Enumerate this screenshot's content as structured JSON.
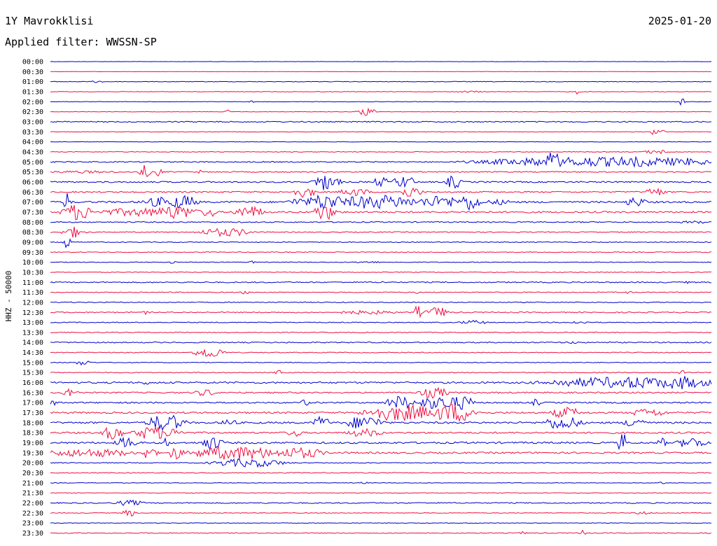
{
  "header": {
    "station": "1Y Mavrokklisi",
    "date": "2025-01-20",
    "filter": "Applied filter: WWSSN-SP"
  },
  "chart_data": {
    "type": "line",
    "ylabel": "HHZ - 50000",
    "colors": [
      "#0000cc",
      "#ee1144"
    ],
    "rows": [
      "00:00",
      "00:30",
      "01:00",
      "01:30",
      "02:00",
      "02:30",
      "03:00",
      "03:30",
      "04:00",
      "04:30",
      "05:00",
      "05:30",
      "06:00",
      "06:30",
      "07:00",
      "07:30",
      "08:00",
      "08:30",
      "09:00",
      "09:30",
      "10:00",
      "10:30",
      "11:00",
      "11:30",
      "12:00",
      "12:30",
      "13:00",
      "13:30",
      "14:00",
      "14:30",
      "15:00",
      "15:30",
      "16:00",
      "16:30",
      "17:00",
      "17:30",
      "18:00",
      "18:30",
      "19:00",
      "19:30",
      "20:00",
      "20:30",
      "21:00",
      "21:30",
      "22:00",
      "22:30",
      "23:00",
      "23:30"
    ],
    "noise": [
      0.2,
      0.2,
      0.4,
      0.4,
      0.3,
      0.3,
      0.8,
      0.4,
      0.3,
      0.5,
      0.8,
      0.8,
      1.0,
      1.0,
      1.2,
      1.2,
      0.8,
      0.7,
      0.6,
      0.6,
      0.5,
      0.5,
      0.8,
      0.6,
      0.6,
      0.8,
      0.6,
      0.6,
      0.8,
      0.6,
      0.5,
      0.6,
      1.2,
      1.0,
      1.0,
      1.2,
      1.3,
      1.2,
      1.3,
      1.2,
      0.6,
      0.6,
      0.4,
      0.4,
      0.8,
      0.5,
      0.4,
      0.6
    ],
    "events": [
      [],
      [],
      [
        [
          0.06,
          0.08,
          1.5
        ]
      ],
      [
        [
          0.61,
          0.66,
          1.2
        ],
        [
          0.795,
          0.8,
          4
        ]
      ],
      [
        [
          0.3,
          0.31,
          1.5
        ],
        [
          0.955,
          0.957,
          10
        ]
      ],
      [
        [
          0.465,
          0.49,
          6
        ],
        [
          0.265,
          0.27,
          4
        ]
      ],
      [],
      [
        [
          0.91,
          0.92,
          6
        ],
        [
          0.925,
          0.93,
          3
        ]
      ],
      [],
      [
        [
          0.9,
          0.94,
          3
        ]
      ],
      [
        [
          0.67,
          1.0,
          7
        ],
        [
          0.725,
          0.73,
          12
        ],
        [
          0.75,
          0.77,
          16
        ],
        [
          0.81,
          0.82,
          8
        ],
        [
          0.88,
          0.9,
          8
        ],
        [
          0.96,
          0.97,
          6
        ]
      ],
      [
        [
          0.0,
          0.1,
          2
        ],
        [
          0.135,
          0.15,
          10
        ],
        [
          0.16,
          0.17,
          7
        ],
        [
          0.225,
          0.23,
          3
        ]
      ],
      [
        [
          0.4,
          0.43,
          12
        ],
        [
          0.42,
          0.44,
          6
        ],
        [
          0.49,
          0.51,
          7
        ],
        [
          0.52,
          0.55,
          9
        ],
        [
          0.6,
          0.62,
          10
        ]
      ],
      [
        [
          0.37,
          0.4,
          8
        ],
        [
          0.44,
          0.48,
          6
        ],
        [
          0.53,
          0.56,
          8
        ],
        [
          0.9,
          0.93,
          6
        ]
      ],
      [
        [
          0.02,
          0.03,
          14
        ],
        [
          0.14,
          0.2,
          7
        ],
        [
          0.18,
          0.22,
          10
        ],
        [
          0.36,
          0.39,
          6
        ],
        [
          0.39,
          0.44,
          12
        ],
        [
          0.44,
          0.55,
          10
        ],
        [
          0.56,
          0.62,
          9
        ],
        [
          0.62,
          0.65,
          12
        ],
        [
          0.66,
          0.7,
          4
        ],
        [
          0.87,
          0.9,
          7
        ]
      ],
      [
        [
          0.02,
          0.06,
          12
        ],
        [
          0.08,
          0.2,
          6
        ],
        [
          0.16,
          0.22,
          10
        ],
        [
          0.23,
          0.25,
          8
        ],
        [
          0.28,
          0.32,
          9
        ],
        [
          0.4,
          0.43,
          12
        ]
      ],
      [
        [
          0.95,
          1.0,
          2
        ]
      ],
      [
        [
          0.02,
          0.05,
          8
        ],
        [
          0.23,
          0.3,
          6
        ]
      ],
      [
        [
          0.02,
          0.03,
          10
        ]
      ],
      [],
      [
        [
          0.18,
          0.19,
          2
        ],
        [
          0.3,
          0.31,
          2
        ],
        [
          0.46,
          0.5,
          1.5
        ]
      ],
      [],
      [
        [
          0.5,
          0.51,
          2
        ],
        [
          0.96,
          0.97,
          2
        ]
      ],
      [
        [
          0.29,
          0.3,
          3
        ],
        [
          0.55,
          0.56,
          2
        ],
        [
          0.87,
          0.88,
          2
        ]
      ],
      [],
      [
        [
          0.14,
          0.15,
          3
        ],
        [
          0.44,
          0.52,
          3
        ],
        [
          0.55,
          0.56,
          10
        ],
        [
          0.57,
          0.6,
          8
        ]
      ],
      [
        [
          0.62,
          0.66,
          3
        ],
        [
          0.78,
          0.82,
          2
        ]
      ],
      [],
      [
        [
          0.78,
          0.8,
          2
        ]
      ],
      [
        [
          0.22,
          0.26,
          8
        ]
      ],
      [
        [
          0.04,
          0.06,
          4
        ]
      ],
      [
        [
          0.34,
          0.35,
          4
        ],
        [
          0.95,
          0.96,
          4
        ]
      ],
      [
        [
          0.14,
          0.15,
          4
        ],
        [
          0.76,
          1.0,
          8
        ],
        [
          0.82,
          0.86,
          8
        ],
        [
          0.87,
          0.9,
          10
        ],
        [
          0.93,
          0.98,
          10
        ]
      ],
      [
        [
          0.02,
          0.04,
          8
        ],
        [
          0.56,
          0.6,
          8
        ],
        [
          0.22,
          0.25,
          5
        ]
      ],
      [
        [
          0.0,
          0.01,
          6
        ],
        [
          0.38,
          0.39,
          6
        ],
        [
          0.51,
          0.55,
          10
        ],
        [
          0.56,
          0.62,
          10
        ],
        [
          0.6,
          0.64,
          10
        ],
        [
          0.73,
          0.74,
          6
        ]
      ],
      [
        [
          0.48,
          0.58,
          12
        ],
        [
          0.58,
          0.64,
          14
        ],
        [
          0.76,
          0.8,
          8
        ],
        [
          0.88,
          0.93,
          6
        ]
      ],
      [
        [
          0.15,
          0.2,
          12
        ],
        [
          0.26,
          0.28,
          6
        ],
        [
          0.4,
          0.42,
          10
        ],
        [
          0.45,
          0.5,
          10
        ],
        [
          0.75,
          0.8,
          10
        ],
        [
          0.87,
          0.9,
          8
        ]
      ],
      [
        [
          0.08,
          0.11,
          10
        ],
        [
          0.13,
          0.18,
          10
        ],
        [
          0.18,
          0.2,
          8
        ],
        [
          0.36,
          0.38,
          6
        ],
        [
          0.45,
          0.5,
          6
        ]
      ],
      [
        [
          0.1,
          0.13,
          8
        ],
        [
          0.17,
          0.18,
          10
        ],
        [
          0.23,
          0.26,
          10
        ],
        [
          0.86,
          0.87,
          16
        ],
        [
          0.92,
          0.93,
          10
        ],
        [
          0.95,
          0.99,
          8
        ]
      ],
      [
        [
          0.0,
          0.12,
          6
        ],
        [
          0.14,
          0.16,
          10
        ],
        [
          0.18,
          0.2,
          10
        ],
        [
          0.22,
          0.34,
          10
        ],
        [
          0.34,
          0.41,
          8
        ]
      ],
      [
        [
          0.25,
          0.35,
          6
        ]
      ],
      [],
      [
        [
          0.47,
          0.48,
          2
        ],
        [
          0.92,
          0.93,
          2
        ]
      ],
      [],
      [
        [
          0.1,
          0.14,
          4
        ]
      ],
      [
        [
          0.11,
          0.13,
          5
        ],
        [
          0.88,
          0.91,
          2
        ]
      ],
      [],
      [
        [
          0.71,
          0.72,
          3
        ],
        [
          0.8,
          0.81,
          5
        ]
      ]
    ]
  }
}
